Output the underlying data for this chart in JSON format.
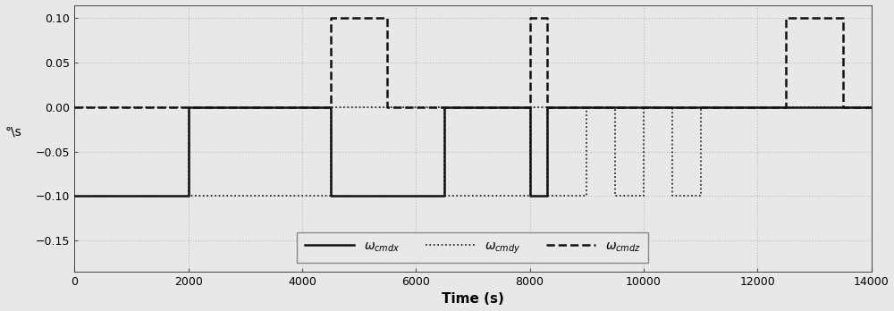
{
  "xlabel": "Time (s)",
  "ylabel": "°\\s",
  "xlim": [
    0,
    14000
  ],
  "ylim": [
    -0.185,
    0.115
  ],
  "yticks": [
    -0.15,
    -0.1,
    -0.05,
    0,
    0.05,
    0.1
  ],
  "xticks": [
    0,
    2000,
    4000,
    6000,
    8000,
    10000,
    12000,
    14000
  ],
  "grid_color": "#bbbbbb",
  "bg_color": "#e8e8e8",
  "face_color": "#e8e8e8",
  "line_color": "#111111",
  "omega_cmdx_t": [
    0,
    2000,
    2000,
    4500,
    4500,
    6500,
    6500,
    8000,
    8000,
    8300,
    8300,
    14000
  ],
  "omega_cmdx_v": [
    -0.1,
    -0.1,
    0,
    0,
    -0.1,
    -0.1,
    0,
    0,
    -0.1,
    -0.1,
    0,
    0
  ],
  "omega_cmdy_t": [
    0,
    2000,
    2000,
    4500,
    4500,
    6500,
    6500,
    8000,
    8000,
    8300,
    8300,
    9000,
    9000,
    9500,
    9500,
    10000,
    10000,
    10500,
    10500,
    11000,
    11000,
    14000
  ],
  "omega_cmdy_v": [
    0,
    0,
    -0.1,
    -0.1,
    0,
    0,
    -0.1,
    -0.1,
    0,
    0,
    -0.1,
    -0.1,
    0,
    0,
    -0.1,
    -0.1,
    0,
    0,
    -0.1,
    -0.1,
    0,
    0
  ],
  "omega_cmdz_t": [
    0,
    4500,
    4500,
    5500,
    5500,
    8000,
    8000,
    8300,
    8300,
    12500,
    12500,
    13500,
    13500,
    14000
  ],
  "omega_cmdz_v": [
    0,
    0,
    0.1,
    0.1,
    0,
    0,
    0.1,
    0.1,
    0,
    0,
    0.1,
    0.1,
    0,
    0
  ],
  "figsize": [
    10.0,
    3.48
  ],
  "dpi": 100
}
